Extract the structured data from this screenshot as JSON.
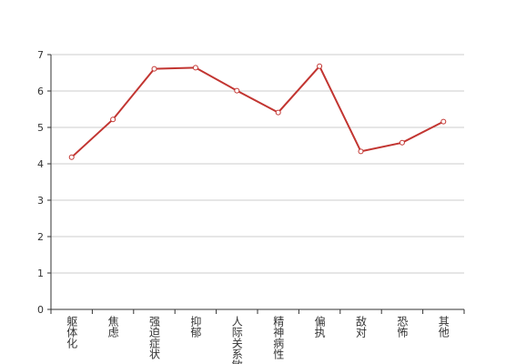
{
  "chart_data": {
    "type": "line",
    "categories": [
      "躯体化",
      "焦虑",
      "强迫症状",
      "抑郁",
      "人际关系敏感",
      "精神病性",
      "偏执",
      "敌对",
      "恐怖",
      "其他"
    ],
    "values": [
      4.18,
      5.22,
      6.61,
      6.64,
      6.01,
      5.41,
      6.68,
      4.34,
      4.58,
      5.16
    ],
    "color": "#c23531",
    "ylim": [
      0,
      7
    ],
    "yticks": [
      0,
      1,
      2,
      3,
      4,
      5,
      6,
      7
    ],
    "grid": true
  }
}
